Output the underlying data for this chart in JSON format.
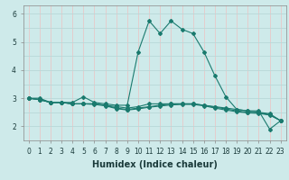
{
  "title": "",
  "xlabel": "Humidex (Indice chaleur)",
  "background_color": "#ceeaea",
  "grid_color_h": "#b8d8d8",
  "grid_color_v": "#e8c8c8",
  "line_color": "#1a7a6e",
  "xlim": [
    -0.5,
    23.5
  ],
  "ylim": [
    1.5,
    6.3
  ],
  "yticks": [
    2,
    3,
    4,
    5,
    6
  ],
  "xtick_labels": [
    "0",
    "1",
    "2",
    "3",
    "4",
    "5",
    "6",
    "7",
    "8",
    "9",
    "10",
    "11",
    "12",
    "13",
    "14",
    "15",
    "16",
    "17",
    "18",
    "19",
    "20",
    "21",
    "22",
    "23"
  ],
  "series": [
    [
      3.0,
      3.0,
      2.85,
      2.85,
      2.85,
      3.05,
      2.85,
      2.8,
      2.75,
      2.75,
      4.65,
      5.75,
      5.3,
      5.75,
      5.45,
      5.3,
      4.65,
      3.8,
      3.05,
      2.6,
      2.55,
      2.55,
      1.9,
      2.2
    ],
    [
      3.0,
      2.95,
      2.85,
      2.85,
      2.8,
      2.8,
      2.8,
      2.75,
      2.7,
      2.65,
      2.7,
      2.8,
      2.8,
      2.8,
      2.8,
      2.8,
      2.75,
      2.7,
      2.65,
      2.6,
      2.55,
      2.5,
      2.45,
      2.2
    ],
    [
      3.0,
      2.95,
      2.85,
      2.85,
      2.8,
      2.8,
      2.8,
      2.75,
      2.65,
      2.6,
      2.65,
      2.7,
      2.75,
      2.8,
      2.8,
      2.8,
      2.75,
      2.68,
      2.62,
      2.55,
      2.5,
      2.48,
      2.42,
      2.2
    ],
    [
      3.0,
      2.95,
      2.85,
      2.85,
      2.8,
      2.8,
      2.78,
      2.73,
      2.63,
      2.58,
      2.62,
      2.68,
      2.72,
      2.76,
      2.78,
      2.78,
      2.73,
      2.65,
      2.58,
      2.52,
      2.48,
      2.46,
      2.4,
      2.2
    ]
  ],
  "marker": "D",
  "markersize": 2.0,
  "linewidth": 0.8,
  "xlabel_fontsize": 7,
  "tick_fontsize": 5.5
}
